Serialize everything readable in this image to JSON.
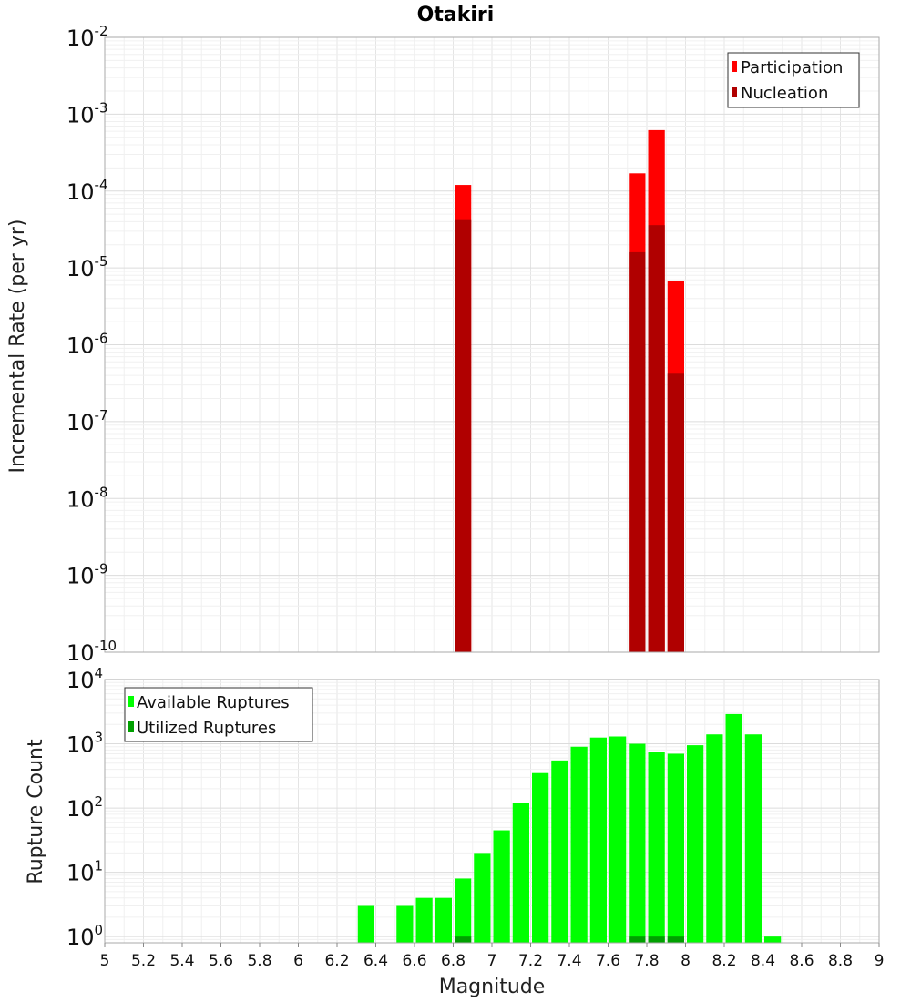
{
  "chart_data": [
    {
      "type": "bar",
      "title": "Otakiri",
      "ylabel": "Incremental Rate (per yr)",
      "xlabel": "",
      "xlim": [
        5,
        9
      ],
      "ylim": [
        1e-10,
        0.01
      ],
      "yscale": "log",
      "grid": true,
      "legend_position": "top-right",
      "bin_width": 0.1,
      "y_ticks": [
        {
          "base": "10",
          "exp": "-10"
        },
        {
          "base": "10",
          "exp": "-9"
        },
        {
          "base": "10",
          "exp": "-8"
        },
        {
          "base": "10",
          "exp": "-7"
        },
        {
          "base": "10",
          "exp": "-6"
        },
        {
          "base": "10",
          "exp": "-5"
        },
        {
          "base": "10",
          "exp": "-4"
        },
        {
          "base": "10",
          "exp": "-3"
        },
        {
          "base": "10",
          "exp": "-2"
        }
      ],
      "series": [
        {
          "name": "Participation",
          "color": "#ff0000",
          "points": [
            [
              6.85,
              0.00012
            ],
            [
              7.75,
              0.00017
            ],
            [
              7.85,
              0.00062
            ],
            [
              7.95,
              6.8e-06
            ]
          ]
        },
        {
          "name": "Nucleation",
          "color": "#b00000",
          "points": [
            [
              6.85,
              4.3e-05
            ],
            [
              7.75,
              1.6e-05
            ],
            [
              7.85,
              3.6e-05
            ],
            [
              7.95,
              4.2e-07
            ]
          ]
        }
      ]
    },
    {
      "type": "bar",
      "ylabel": "Rupture Count",
      "xlabel": "Magnitude",
      "xlim": [
        5,
        9
      ],
      "ylim": [
        0.8,
        10000
      ],
      "yscale": "log",
      "grid": true,
      "legend_position": "top-left",
      "bin_width": 0.1,
      "x_tick_labels": [
        "5",
        "5.2",
        "5.4",
        "5.6",
        "5.8",
        "6",
        "6.2",
        "6.4",
        "6.6",
        "6.8",
        "7",
        "7.2",
        "7.4",
        "7.6",
        "7.8",
        "8",
        "8.2",
        "8.4",
        "8.6",
        "8.8",
        "9"
      ],
      "y_ticks": [
        {
          "base": "10",
          "exp": "0"
        },
        {
          "base": "10",
          "exp": "1"
        },
        {
          "base": "10",
          "exp": "2"
        },
        {
          "base": "10",
          "exp": "3"
        },
        {
          "base": "10",
          "exp": "4"
        }
      ],
      "series": [
        {
          "name": "Available Ruptures",
          "color": "#00ff00",
          "points": [
            [
              6.35,
              3
            ],
            [
              6.55,
              3
            ],
            [
              6.65,
              4
            ],
            [
              6.75,
              4
            ],
            [
              6.85,
              8
            ],
            [
              6.95,
              20
            ],
            [
              7.05,
              45
            ],
            [
              7.15,
              120
            ],
            [
              7.25,
              350
            ],
            [
              7.35,
              550
            ],
            [
              7.45,
              900
            ],
            [
              7.55,
              1250
            ],
            [
              7.65,
              1300
            ],
            [
              7.75,
              1000
            ],
            [
              7.85,
              750
            ],
            [
              7.95,
              700
            ],
            [
              8.05,
              950
            ],
            [
              8.15,
              1400
            ],
            [
              8.25,
              2900
            ],
            [
              8.35,
              1400
            ],
            [
              8.45,
              1
            ]
          ]
        },
        {
          "name": "Utilized Ruptures",
          "color": "#00a000",
          "points": [
            [
              6.85,
              1
            ],
            [
              7.75,
              1
            ],
            [
              7.85,
              1
            ],
            [
              7.95,
              1
            ]
          ]
        }
      ]
    }
  ]
}
